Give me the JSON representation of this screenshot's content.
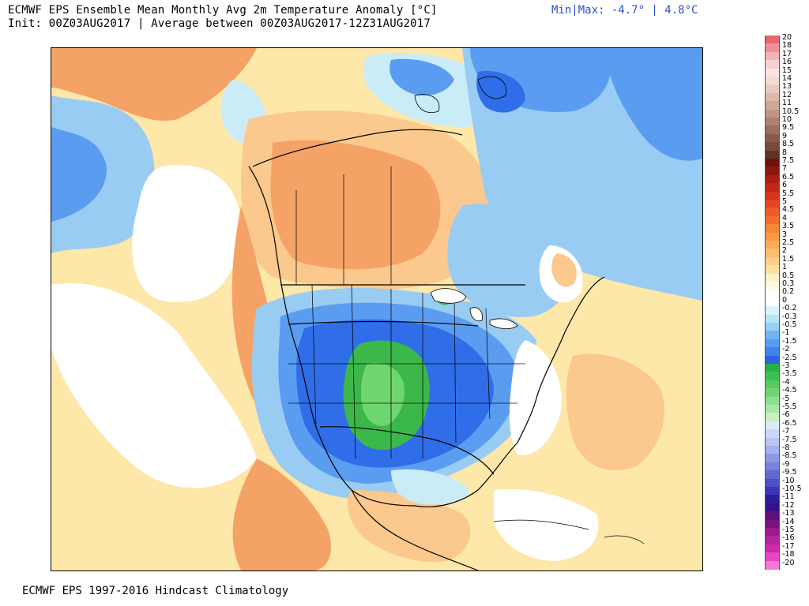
{
  "header": {
    "title": "ECMWF EPS Ensemble Mean Monthly Avg 2m Temperature Anomaly [°C]",
    "init": "Init: 00Z03AUG2017 | Average between 00Z03AUG2017-12Z31AUG2017",
    "minmax": "Min|Max: -4.7° | 4.8°C"
  },
  "footer": "ECMWF EPS 1997-2016 Hindcast Climatology",
  "map": {
    "region": "North America",
    "field": "2m temperature anomaly",
    "colors": {
      "warm_light": "#fde7a9",
      "warm_mid": "#fbc88d",
      "warm_strong": "#f5a267",
      "neutral": "#ffffff",
      "cool_pale": "#c9ecf7",
      "cool_light": "#99ccf3",
      "cool_mid": "#5a9df0",
      "cool_strong": "#2f6ee8",
      "cold_green": "#3cb84a",
      "cold_green_light": "#6fd56f"
    }
  },
  "legend": {
    "labels": [
      "20",
      "18",
      "17",
      "16",
      "15",
      "14",
      "13",
      "12",
      "11",
      "10.5",
      "10",
      "9.5",
      "9",
      "8.5",
      "8",
      "7.5",
      "7",
      "6.5",
      "6",
      "5.5",
      "5",
      "4.5",
      "4",
      "3.5",
      "3",
      "2.5",
      "2",
      "1.5",
      "1",
      "0.5",
      "0.3",
      "0.2",
      "0",
      "-0.2",
      "-0.3",
      "-0.5",
      "-1",
      "-1.5",
      "-2",
      "-2.5",
      "-3",
      "-3.5",
      "-4",
      "-4.5",
      "-5",
      "-5.5",
      "-6",
      "-6.5",
      "-7",
      "-7.5",
      "-8",
      "-8.5",
      "-9",
      "-9.5",
      "-10",
      "-10.5",
      "-11",
      "-12",
      "-13",
      "-14",
      "-15",
      "-16",
      "-17",
      "-18",
      "-20"
    ],
    "colors": [
      "#e8676b",
      "#ef9096",
      "#f5b3b6",
      "#f8d0d2",
      "#fbe3e3",
      "#f2dcd4",
      "#e8cbbf",
      "#dcb9aa",
      "#cfa797",
      "#bf9585",
      "#ad8272",
      "#9a6f5f",
      "#875c4d",
      "#744b3d",
      "#5d3328",
      "#70120b",
      "#8d170e",
      "#a91e12",
      "#c42617",
      "#d8321c",
      "#e54322",
      "#ee5a28",
      "#f46d2e",
      "#f78638",
      "#f99a46",
      "#fbab5a",
      "#fcbd70",
      "#fdcf88",
      "#fee1a2",
      "#fff0c6",
      "#fff8e2",
      "#ffffff",
      "#ffffff",
      "#d8f1fb",
      "#b8e4f7",
      "#98cff4",
      "#72b4f0",
      "#5a9df0",
      "#3f83ec",
      "#2b63e0",
      "#23b144",
      "#3cc050",
      "#56cb5e",
      "#72d574",
      "#8fde8e",
      "#aae6a9",
      "#c8eec6",
      "#dcebf7",
      "#cbd8f7",
      "#b9c5f2",
      "#a5b0ec",
      "#8e98e5",
      "#7a80dd",
      "#6468d2",
      "#4d4fc7",
      "#3d35b7",
      "#2a1d9e",
      "#3a0f86",
      "#58127e",
      "#7a137f",
      "#9b1a8e",
      "#b8229d",
      "#d02aac",
      "#e646bf",
      "#f27ad6"
    ]
  }
}
